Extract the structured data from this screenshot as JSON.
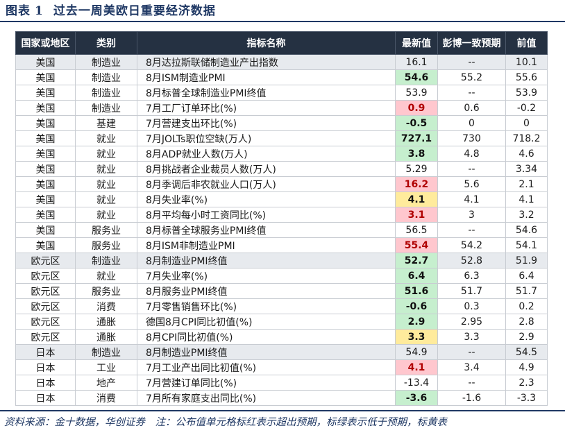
{
  "title": {
    "label": "图表",
    "number": "1",
    "text": "过去一周美欧日重要经济数据"
  },
  "table": {
    "headers": [
      "国家或地区",
      "类别",
      "指标名称",
      "最新值",
      "彭博一致预期",
      "前值"
    ],
    "rows": [
      {
        "region": "美国",
        "category": "制造业",
        "indicator": "8月达拉斯联储制造业产出指数",
        "latest": "16.1",
        "consensus": "--",
        "previous": "10.1",
        "highlight": "",
        "shade": "shaded"
      },
      {
        "region": "美国",
        "category": "制造业",
        "indicator": "8月ISM制造业PMI",
        "latest": "54.6",
        "consensus": "55.2",
        "previous": "55.6",
        "highlight": "green",
        "shade": "plain"
      },
      {
        "region": "美国",
        "category": "制造业",
        "indicator": "8月标普全球制造业PMI终值",
        "latest": "53.9",
        "consensus": "--",
        "previous": "53.9",
        "highlight": "",
        "shade": "plain"
      },
      {
        "region": "美国",
        "category": "制造业",
        "indicator": "7月工厂订单环比(%)",
        "latest": "0.9",
        "consensus": "0.6",
        "previous": "-0.2",
        "highlight": "red",
        "shade": "plain"
      },
      {
        "region": "美国",
        "category": "基建",
        "indicator": "7月营建支出环比(%)",
        "latest": "-0.5",
        "consensus": "0",
        "previous": "0",
        "highlight": "green",
        "shade": "plain"
      },
      {
        "region": "美国",
        "category": "就业",
        "indicator": "7月JOLTs职位空缺(万人)",
        "latest": "727.1",
        "consensus": "730",
        "previous": "718.2",
        "highlight": "green",
        "shade": "plain"
      },
      {
        "region": "美国",
        "category": "就业",
        "indicator": "8月ADP就业人数(万人)",
        "latest": "3.8",
        "consensus": "4.8",
        "previous": "4.6",
        "highlight": "green",
        "shade": "plain"
      },
      {
        "region": "美国",
        "category": "就业",
        "indicator": "8月挑战者企业裁员人数(万人)",
        "latest": "5.29",
        "consensus": "--",
        "previous": "3.34",
        "highlight": "",
        "shade": "plain"
      },
      {
        "region": "美国",
        "category": "就业",
        "indicator": "8月季调后非农就业人口(万人)",
        "latest": "16.2",
        "consensus": "5.6",
        "previous": "2.1",
        "highlight": "red",
        "shade": "plain"
      },
      {
        "region": "美国",
        "category": "就业",
        "indicator": "8月失业率(%)",
        "latest": "4.1",
        "consensus": "4.1",
        "previous": "4.1",
        "highlight": "yellow",
        "shade": "plain"
      },
      {
        "region": "美国",
        "category": "就业",
        "indicator": "8月平均每小时工资同比(%)",
        "latest": "3.1",
        "consensus": "3",
        "previous": "3.2",
        "highlight": "red",
        "shade": "plain"
      },
      {
        "region": "美国",
        "category": "服务业",
        "indicator": "8月标普全球服务业PMI终值",
        "latest": "56.5",
        "consensus": "--",
        "previous": "54.6",
        "highlight": "",
        "shade": "plain"
      },
      {
        "region": "美国",
        "category": "服务业",
        "indicator": "8月ISM非制造业PMI",
        "latest": "55.4",
        "consensus": "54.2",
        "previous": "54.1",
        "highlight": "red",
        "shade": "plain"
      },
      {
        "region": "欧元区",
        "category": "制造业",
        "indicator": "8月制造业PMI终值",
        "latest": "52.7",
        "consensus": "52.8",
        "previous": "51.9",
        "highlight": "green",
        "shade": "shaded"
      },
      {
        "region": "欧元区",
        "category": "就业",
        "indicator": "7月失业率(%)",
        "latest": "6.4",
        "consensus": "6.3",
        "previous": "6.4",
        "highlight": "green",
        "shade": "plain"
      },
      {
        "region": "欧元区",
        "category": "服务业",
        "indicator": "8月服务业PMI终值",
        "latest": "51.6",
        "consensus": "51.7",
        "previous": "51.7",
        "highlight": "green",
        "shade": "plain"
      },
      {
        "region": "欧元区",
        "category": "消费",
        "indicator": "7月零售销售环比(%)",
        "latest": "-0.6",
        "consensus": "0.3",
        "previous": "0.2",
        "highlight": "green",
        "shade": "plain"
      },
      {
        "region": "欧元区",
        "category": "通胀",
        "indicator": "德国8月CPI同比初值(%)",
        "latest": "2.9",
        "consensus": "2.95",
        "previous": "2.8",
        "highlight": "green",
        "shade": "plain"
      },
      {
        "region": "欧元区",
        "category": "通胀",
        "indicator": "8月CPI同比初值(%)",
        "latest": "3.3",
        "consensus": "3.3",
        "previous": "2.9",
        "highlight": "yellow",
        "shade": "plain"
      },
      {
        "region": "日本",
        "category": "制造业",
        "indicator": "8月制造业PMI终值",
        "latest": "54.9",
        "consensus": "--",
        "previous": "54.5",
        "highlight": "",
        "shade": "shaded"
      },
      {
        "region": "日本",
        "category": "工业",
        "indicator": "7月工业产出同比初值(%)",
        "latest": "4.1",
        "consensus": "3.4",
        "previous": "4.9",
        "highlight": "red",
        "shade": "plain"
      },
      {
        "region": "日本",
        "category": "地产",
        "indicator": "7月营建订单同比(%)",
        "latest": "-13.4",
        "consensus": "--",
        "previous": "2.3",
        "highlight": "",
        "shade": "plain"
      },
      {
        "region": "日本",
        "category": "消费",
        "indicator": "7月所有家庭支出同比(%)",
        "latest": "-3.6",
        "consensus": "-1.6",
        "previous": "-3.3",
        "highlight": "green",
        "shade": "plain"
      }
    ]
  },
  "footer": {
    "text": "资料来源：金十数据，华创证券　注：公布值单元格标红表示超出预期，标绿表示低于预期，标黄表"
  },
  "colors": {
    "header_bg": "#253142",
    "title": "#1f3864",
    "red_fill": "#ffc7ce",
    "green_fill": "#c6efce",
    "yellow_fill": "#ffeb9c",
    "shaded_row": "#e7eaee"
  }
}
